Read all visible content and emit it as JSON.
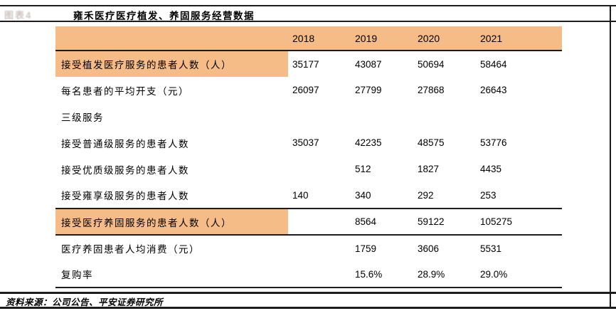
{
  "page": {
    "figure_label": "图表4",
    "title": "雍禾医疗医疗植发、养固服务经营数据",
    "source": "资料来源：公司公告、平安证券研究所"
  },
  "colors": {
    "highlight_orange": "#F6BC88",
    "rule_dark": "#1C1C1C"
  },
  "table": {
    "header": {
      "label": "",
      "years": [
        "2018",
        "2019",
        "2020",
        "2021"
      ]
    },
    "rows": [
      {
        "label": "接受植发医疗服务的患者人数（人）",
        "highlight": true,
        "values": [
          "35177",
          "43087",
          "50694",
          "58464"
        ]
      },
      {
        "label": "每名患者的平均开支（元）",
        "highlight": false,
        "values": [
          "26097",
          "27799",
          "27868",
          "26643"
        ]
      },
      {
        "label": "三级服务",
        "highlight": false,
        "values": [
          "",
          "",
          "",
          ""
        ]
      },
      {
        "label": "接受普通级服务的患者人数",
        "highlight": false,
        "values": [
          "35037",
          "42235",
          "48575",
          "53776"
        ]
      },
      {
        "label": "接受优质级服务的患者人数",
        "highlight": false,
        "values": [
          "",
          "512",
          "1827",
          "4435"
        ]
      },
      {
        "label": "接受雍享级服务的患者人数",
        "highlight": false,
        "values": [
          "140",
          "340",
          "292",
          "253"
        ]
      },
      {
        "label": "接受医疗养固服务的患者人数（人）",
        "highlight": true,
        "values": [
          "",
          "8564",
          "59122",
          "105275"
        ]
      },
      {
        "label": "医疗养固患者人均消费（元）",
        "highlight": false,
        "values": [
          "",
          "1759",
          "3606",
          "5531"
        ]
      },
      {
        "label": "复购率",
        "highlight": false,
        "values": [
          "",
          "15.6%",
          "28.9%",
          "29.0%"
        ]
      }
    ]
  }
}
